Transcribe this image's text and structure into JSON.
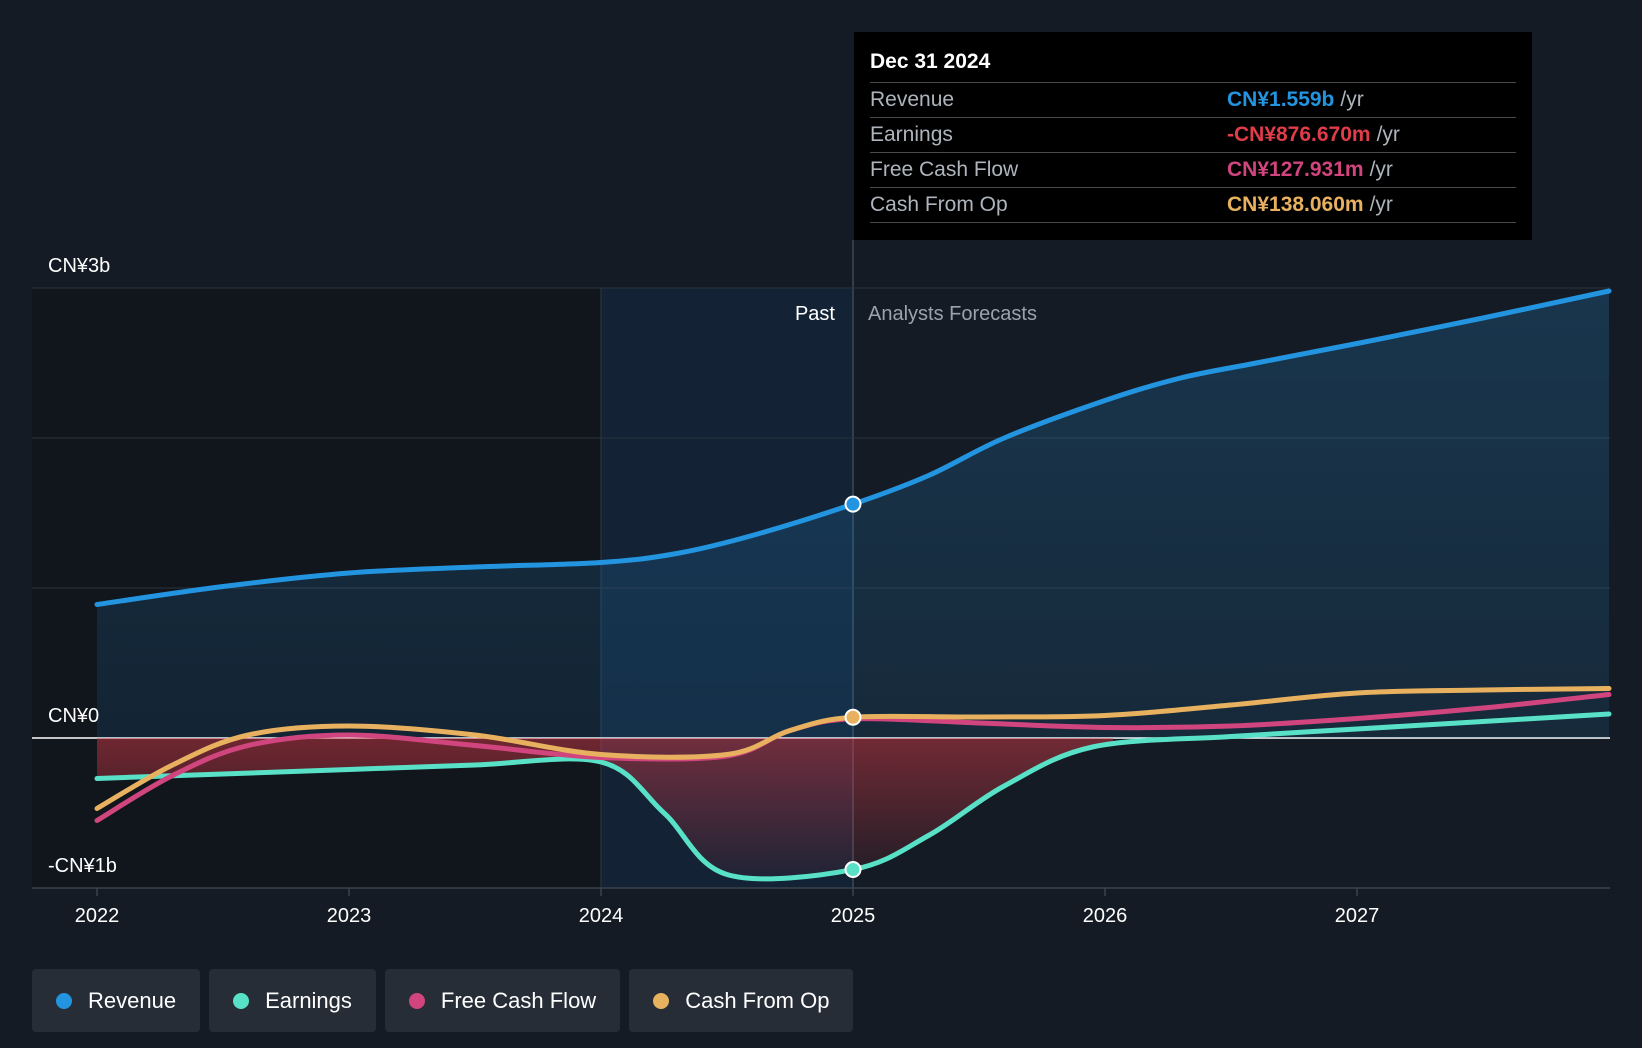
{
  "colors": {
    "revenue": "#2394df",
    "earnings": "#58e1c6",
    "free_cash_flow": "#d1457f",
    "cash_from_op": "#e8b15f",
    "earnings_negative": "#e03c49"
  },
  "tooltip": {
    "date": "Dec 31 2024",
    "rows": [
      {
        "label": "Revenue",
        "value": "CN¥1.559b",
        "unit": "/yr"
      },
      {
        "label": "Earnings",
        "value": "-CN¥876.670m",
        "unit": "/yr"
      },
      {
        "label": "Free Cash Flow",
        "value": "CN¥127.931m",
        "unit": "/yr"
      },
      {
        "label": "Cash From Op",
        "value": "CN¥138.060m",
        "unit": "/yr"
      }
    ]
  },
  "chart_data": {
    "type": "line",
    "title": "",
    "y_tick_labels": {
      "top": "CN¥3b",
      "zero": "CN¥0",
      "bottom": "-CN¥1b"
    },
    "ylim": [
      -1,
      3
    ],
    "xlim": [
      2022,
      2028
    ],
    "x_tick_labels": [
      "2022",
      "2023",
      "2024",
      "2025",
      "2026",
      "2027"
    ],
    "past_label": "Past",
    "forecast_label": "Analysts Forecasts",
    "past_end": 2025,
    "highlight_start": 2024,
    "series": [
      {
        "name": "Revenue",
        "key": "revenue",
        "points": [
          [
            2022,
            0.89
          ],
          [
            2022.5,
            1.01
          ],
          [
            2023,
            1.1
          ],
          [
            2023.5,
            1.14
          ],
          [
            2024,
            1.17
          ],
          [
            2024.3,
            1.23
          ],
          [
            2024.6,
            1.35
          ],
          [
            2025,
            1.559
          ],
          [
            2025.3,
            1.75
          ],
          [
            2025.6,
            2.0
          ],
          [
            2026,
            2.25
          ],
          [
            2026.3,
            2.4
          ],
          [
            2026.6,
            2.5
          ],
          [
            2027,
            2.63
          ],
          [
            2027.5,
            2.8
          ],
          [
            2028,
            2.98
          ]
        ]
      },
      {
        "name": "Earnings",
        "key": "earnings",
        "points": [
          [
            2022,
            -0.27
          ],
          [
            2022.5,
            -0.24
          ],
          [
            2023,
            -0.21
          ],
          [
            2023.5,
            -0.18
          ],
          [
            2024,
            -0.16
          ],
          [
            2024.25,
            -0.5
          ],
          [
            2024.5,
            -0.91
          ],
          [
            2025,
            -0.877
          ],
          [
            2025.3,
            -0.65
          ],
          [
            2025.6,
            -0.32
          ],
          [
            2025.95,
            -0.06
          ],
          [
            2026.5,
            0.01
          ],
          [
            2027,
            0.06
          ],
          [
            2027.5,
            0.11
          ],
          [
            2028,
            0.16
          ]
        ]
      },
      {
        "name": "Free Cash Flow",
        "key": "free_cash_flow",
        "points": [
          [
            2022,
            -0.55
          ],
          [
            2022.3,
            -0.25
          ],
          [
            2022.6,
            -0.05
          ],
          [
            2023,
            0.02
          ],
          [
            2023.5,
            -0.05
          ],
          [
            2024,
            -0.13
          ],
          [
            2024.5,
            -0.12
          ],
          [
            2024.75,
            0.05
          ],
          [
            2025,
            0.128
          ],
          [
            2025.5,
            0.1
          ],
          [
            2026,
            0.07
          ],
          [
            2026.5,
            0.08
          ],
          [
            2027,
            0.13
          ],
          [
            2027.5,
            0.2
          ],
          [
            2028,
            0.29
          ]
        ]
      },
      {
        "name": "Cash From Op",
        "key": "cash_from_op",
        "points": [
          [
            2022,
            -0.47
          ],
          [
            2022.3,
            -0.18
          ],
          [
            2022.6,
            0.02
          ],
          [
            2023,
            0.08
          ],
          [
            2023.5,
            0.02
          ],
          [
            2024,
            -0.11
          ],
          [
            2024.5,
            -0.11
          ],
          [
            2024.75,
            0.05
          ],
          [
            2025,
            0.138
          ],
          [
            2025.5,
            0.14
          ],
          [
            2026,
            0.15
          ],
          [
            2026.5,
            0.22
          ],
          [
            2027,
            0.3
          ],
          [
            2027.5,
            0.32
          ],
          [
            2028,
            0.33
          ]
        ]
      }
    ],
    "markers_at": 2025
  },
  "legend": [
    {
      "label": "Revenue",
      "key": "revenue"
    },
    {
      "label": "Earnings",
      "key": "earnings"
    },
    {
      "label": "Free Cash Flow",
      "key": "free_cash_flow"
    },
    {
      "label": "Cash From Op",
      "key": "cash_from_op"
    }
  ]
}
